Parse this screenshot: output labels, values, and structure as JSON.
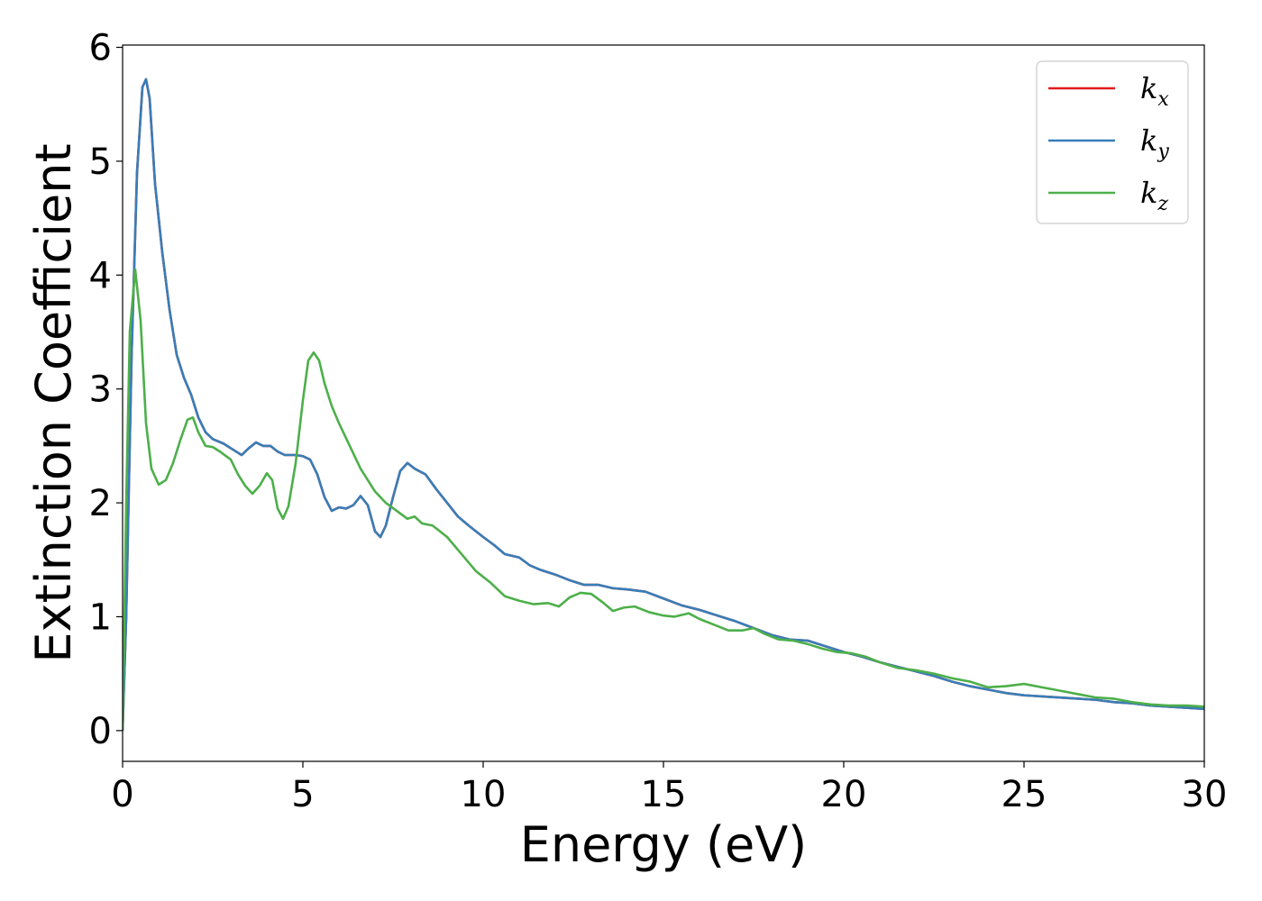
{
  "chart_data": {
    "type": "line",
    "xlabel": "Energy (eV)",
    "ylabel": "Extinction Coefficient",
    "xlim": [
      0,
      30
    ],
    "ylim": [
      -0.27,
      6.02
    ],
    "xticks": [
      0,
      5,
      10,
      15,
      20,
      25,
      30
    ],
    "yticks": [
      0,
      1,
      2,
      3,
      4,
      5,
      6
    ],
    "grid": false,
    "legend_position": "top-right",
    "colors": {
      "kx": "#e41a1c",
      "ky": "#377eb8",
      "kz": "#4daf4a"
    },
    "legend": [
      {
        "symbol": "k",
        "subscript": "x"
      },
      {
        "symbol": "k",
        "subscript": "y"
      },
      {
        "symbol": "k",
        "subscript": "z"
      }
    ],
    "series": [
      {
        "key": "kx",
        "points": [
          [
            0,
            0
          ],
          [
            0.1,
            1.0
          ],
          [
            0.25,
            3.3
          ],
          [
            0.4,
            4.9
          ],
          [
            0.55,
            5.65
          ],
          [
            0.65,
            5.72
          ],
          [
            0.75,
            5.55
          ],
          [
            0.9,
            4.8
          ],
          [
            1.1,
            4.2
          ],
          [
            1.3,
            3.7
          ],
          [
            1.5,
            3.3
          ],
          [
            1.7,
            3.1
          ],
          [
            1.9,
            2.95
          ],
          [
            2.1,
            2.75
          ],
          [
            2.3,
            2.62
          ],
          [
            2.5,
            2.56
          ],
          [
            2.8,
            2.52
          ],
          [
            3.0,
            2.48
          ],
          [
            3.3,
            2.42
          ],
          [
            3.5,
            2.48
          ],
          [
            3.7,
            2.53
          ],
          [
            3.9,
            2.5
          ],
          [
            4.1,
            2.5
          ],
          [
            4.3,
            2.45
          ],
          [
            4.5,
            2.42
          ],
          [
            4.8,
            2.42
          ],
          [
            5.0,
            2.41
          ],
          [
            5.2,
            2.38
          ],
          [
            5.4,
            2.25
          ],
          [
            5.6,
            2.05
          ],
          [
            5.8,
            1.93
          ],
          [
            6.0,
            1.96
          ],
          [
            6.2,
            1.95
          ],
          [
            6.4,
            1.98
          ],
          [
            6.6,
            2.06
          ],
          [
            6.8,
            1.98
          ],
          [
            7.0,
            1.75
          ],
          [
            7.15,
            1.7
          ],
          [
            7.3,
            1.8
          ],
          [
            7.5,
            2.05
          ],
          [
            7.7,
            2.28
          ],
          [
            7.9,
            2.35
          ],
          [
            8.1,
            2.3
          ],
          [
            8.4,
            2.25
          ],
          [
            8.7,
            2.12
          ],
          [
            9.0,
            2.0
          ],
          [
            9.3,
            1.88
          ],
          [
            9.6,
            1.8
          ],
          [
            10.0,
            1.7
          ],
          [
            10.3,
            1.63
          ],
          [
            10.6,
            1.55
          ],
          [
            11.0,
            1.52
          ],
          [
            11.3,
            1.45
          ],
          [
            11.6,
            1.41
          ],
          [
            12.0,
            1.37
          ],
          [
            12.4,
            1.32
          ],
          [
            12.8,
            1.28
          ],
          [
            13.2,
            1.28
          ],
          [
            13.6,
            1.25
          ],
          [
            14.0,
            1.24
          ],
          [
            14.5,
            1.22
          ],
          [
            15.0,
            1.16
          ],
          [
            15.5,
            1.1
          ],
          [
            16.0,
            1.06
          ],
          [
            16.5,
            1.01
          ],
          [
            17.0,
            0.96
          ],
          [
            17.5,
            0.9
          ],
          [
            18.0,
            0.84
          ],
          [
            18.5,
            0.8
          ],
          [
            19.0,
            0.79
          ],
          [
            19.5,
            0.74
          ],
          [
            20.0,
            0.69
          ],
          [
            20.5,
            0.65
          ],
          [
            21.0,
            0.6
          ],
          [
            21.5,
            0.56
          ],
          [
            22.0,
            0.52
          ],
          [
            22.5,
            0.48
          ],
          [
            23.0,
            0.43
          ],
          [
            23.5,
            0.39
          ],
          [
            24.0,
            0.36
          ],
          [
            24.5,
            0.33
          ],
          [
            25.0,
            0.31
          ],
          [
            25.5,
            0.3
          ],
          [
            26.0,
            0.29
          ],
          [
            26.5,
            0.28
          ],
          [
            27.0,
            0.27
          ],
          [
            27.5,
            0.25
          ],
          [
            28.0,
            0.24
          ],
          [
            28.5,
            0.22
          ],
          [
            29.0,
            0.21
          ],
          [
            29.5,
            0.2
          ],
          [
            30.0,
            0.19
          ]
        ]
      },
      {
        "key": "ky",
        "points": [
          [
            0,
            0
          ],
          [
            0.1,
            1.0
          ],
          [
            0.25,
            3.3
          ],
          [
            0.4,
            4.9
          ],
          [
            0.55,
            5.65
          ],
          [
            0.65,
            5.72
          ],
          [
            0.75,
            5.55
          ],
          [
            0.9,
            4.8
          ],
          [
            1.1,
            4.2
          ],
          [
            1.3,
            3.7
          ],
          [
            1.5,
            3.3
          ],
          [
            1.7,
            3.1
          ],
          [
            1.9,
            2.95
          ],
          [
            2.1,
            2.75
          ],
          [
            2.3,
            2.62
          ],
          [
            2.5,
            2.56
          ],
          [
            2.8,
            2.52
          ],
          [
            3.0,
            2.48
          ],
          [
            3.3,
            2.42
          ],
          [
            3.5,
            2.48
          ],
          [
            3.7,
            2.53
          ],
          [
            3.9,
            2.5
          ],
          [
            4.1,
            2.5
          ],
          [
            4.3,
            2.45
          ],
          [
            4.5,
            2.42
          ],
          [
            4.8,
            2.42
          ],
          [
            5.0,
            2.41
          ],
          [
            5.2,
            2.38
          ],
          [
            5.4,
            2.25
          ],
          [
            5.6,
            2.05
          ],
          [
            5.8,
            1.93
          ],
          [
            6.0,
            1.96
          ],
          [
            6.2,
            1.95
          ],
          [
            6.4,
            1.98
          ],
          [
            6.6,
            2.06
          ],
          [
            6.8,
            1.98
          ],
          [
            7.0,
            1.75
          ],
          [
            7.15,
            1.7
          ],
          [
            7.3,
            1.8
          ],
          [
            7.5,
            2.05
          ],
          [
            7.7,
            2.28
          ],
          [
            7.9,
            2.35
          ],
          [
            8.1,
            2.3
          ],
          [
            8.4,
            2.25
          ],
          [
            8.7,
            2.12
          ],
          [
            9.0,
            2.0
          ],
          [
            9.3,
            1.88
          ],
          [
            9.6,
            1.8
          ],
          [
            10.0,
            1.7
          ],
          [
            10.3,
            1.63
          ],
          [
            10.6,
            1.55
          ],
          [
            11.0,
            1.52
          ],
          [
            11.3,
            1.45
          ],
          [
            11.6,
            1.41
          ],
          [
            12.0,
            1.37
          ],
          [
            12.4,
            1.32
          ],
          [
            12.8,
            1.28
          ],
          [
            13.2,
            1.28
          ],
          [
            13.6,
            1.25
          ],
          [
            14.0,
            1.24
          ],
          [
            14.5,
            1.22
          ],
          [
            15.0,
            1.16
          ],
          [
            15.5,
            1.1
          ],
          [
            16.0,
            1.06
          ],
          [
            16.5,
            1.01
          ],
          [
            17.0,
            0.96
          ],
          [
            17.5,
            0.9
          ],
          [
            18.0,
            0.84
          ],
          [
            18.5,
            0.8
          ],
          [
            19.0,
            0.79
          ],
          [
            19.5,
            0.74
          ],
          [
            20.0,
            0.69
          ],
          [
            20.5,
            0.65
          ],
          [
            21.0,
            0.6
          ],
          [
            21.5,
            0.56
          ],
          [
            22.0,
            0.52
          ],
          [
            22.5,
            0.48
          ],
          [
            23.0,
            0.43
          ],
          [
            23.5,
            0.39
          ],
          [
            24.0,
            0.36
          ],
          [
            24.5,
            0.33
          ],
          [
            25.0,
            0.31
          ],
          [
            25.5,
            0.3
          ],
          [
            26.0,
            0.29
          ],
          [
            26.5,
            0.28
          ],
          [
            27.0,
            0.27
          ],
          [
            27.5,
            0.25
          ],
          [
            28.0,
            0.24
          ],
          [
            28.5,
            0.22
          ],
          [
            29.0,
            0.21
          ],
          [
            29.5,
            0.2
          ],
          [
            30.0,
            0.19
          ]
        ]
      },
      {
        "key": "kz",
        "points": [
          [
            0,
            0
          ],
          [
            0.1,
            2.0
          ],
          [
            0.2,
            3.5
          ],
          [
            0.35,
            4.05
          ],
          [
            0.5,
            3.6
          ],
          [
            0.65,
            2.7
          ],
          [
            0.8,
            2.3
          ],
          [
            1.0,
            2.16
          ],
          [
            1.2,
            2.2
          ],
          [
            1.4,
            2.35
          ],
          [
            1.6,
            2.55
          ],
          [
            1.8,
            2.73
          ],
          [
            1.95,
            2.75
          ],
          [
            2.1,
            2.62
          ],
          [
            2.3,
            2.5
          ],
          [
            2.5,
            2.49
          ],
          [
            2.7,
            2.45
          ],
          [
            3.0,
            2.38
          ],
          [
            3.2,
            2.25
          ],
          [
            3.4,
            2.15
          ],
          [
            3.6,
            2.08
          ],
          [
            3.8,
            2.15
          ],
          [
            4.0,
            2.26
          ],
          [
            4.15,
            2.2
          ],
          [
            4.3,
            1.95
          ],
          [
            4.45,
            1.86
          ],
          [
            4.6,
            1.97
          ],
          [
            4.8,
            2.35
          ],
          [
            5.0,
            2.9
          ],
          [
            5.15,
            3.25
          ],
          [
            5.3,
            3.32
          ],
          [
            5.45,
            3.25
          ],
          [
            5.6,
            3.05
          ],
          [
            5.8,
            2.85
          ],
          [
            6.0,
            2.7
          ],
          [
            6.3,
            2.5
          ],
          [
            6.6,
            2.3
          ],
          [
            7.0,
            2.1
          ],
          [
            7.3,
            2.0
          ],
          [
            7.6,
            1.93
          ],
          [
            7.9,
            1.86
          ],
          [
            8.1,
            1.88
          ],
          [
            8.3,
            1.82
          ],
          [
            8.6,
            1.8
          ],
          [
            9.0,
            1.7
          ],
          [
            9.4,
            1.55
          ],
          [
            9.8,
            1.4
          ],
          [
            10.2,
            1.3
          ],
          [
            10.6,
            1.18
          ],
          [
            11.0,
            1.14
          ],
          [
            11.4,
            1.11
          ],
          [
            11.8,
            1.12
          ],
          [
            12.1,
            1.09
          ],
          [
            12.4,
            1.17
          ],
          [
            12.7,
            1.21
          ],
          [
            13.0,
            1.2
          ],
          [
            13.3,
            1.13
          ],
          [
            13.6,
            1.05
          ],
          [
            13.9,
            1.08
          ],
          [
            14.2,
            1.09
          ],
          [
            14.6,
            1.04
          ],
          [
            15.0,
            1.01
          ],
          [
            15.3,
            1.0
          ],
          [
            15.7,
            1.03
          ],
          [
            16.0,
            0.98
          ],
          [
            16.4,
            0.93
          ],
          [
            16.8,
            0.88
          ],
          [
            17.2,
            0.88
          ],
          [
            17.5,
            0.9
          ],
          [
            17.8,
            0.85
          ],
          [
            18.2,
            0.8
          ],
          [
            18.6,
            0.79
          ],
          [
            19.0,
            0.76
          ],
          [
            19.4,
            0.72
          ],
          [
            19.8,
            0.69
          ],
          [
            20.2,
            0.68
          ],
          [
            20.6,
            0.65
          ],
          [
            21.0,
            0.6
          ],
          [
            21.5,
            0.55
          ],
          [
            22.0,
            0.53
          ],
          [
            22.5,
            0.5
          ],
          [
            23.0,
            0.46
          ],
          [
            23.5,
            0.43
          ],
          [
            24.0,
            0.38
          ],
          [
            24.5,
            0.39
          ],
          [
            25.0,
            0.41
          ],
          [
            25.5,
            0.38
          ],
          [
            26.0,
            0.35
          ],
          [
            26.5,
            0.32
          ],
          [
            27.0,
            0.29
          ],
          [
            27.5,
            0.28
          ],
          [
            28.0,
            0.25
          ],
          [
            28.5,
            0.23
          ],
          [
            29.0,
            0.22
          ],
          [
            29.5,
            0.22
          ],
          [
            30.0,
            0.21
          ]
        ]
      }
    ]
  }
}
